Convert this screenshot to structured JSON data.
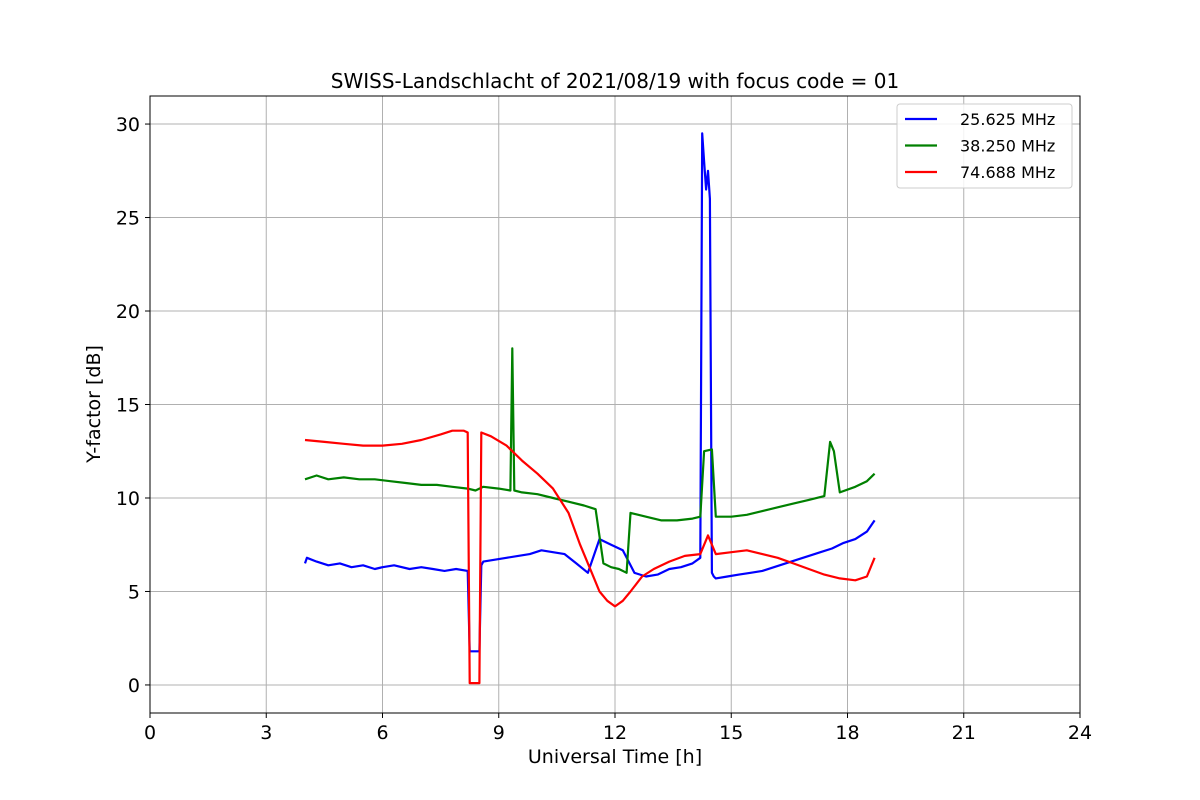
{
  "chart_data": {
    "type": "line",
    "title": "SWISS-Landschlacht of 2021/08/19 with focus code = 01",
    "xlabel": "Universal Time [h]",
    "ylabel": "Y-factor [dB]",
    "xlim": [
      0,
      24
    ],
    "ylim": [
      -1.5,
      31.5
    ],
    "xticks": [
      0,
      3,
      6,
      9,
      12,
      15,
      18,
      21,
      24
    ],
    "yticks": [
      0,
      5,
      10,
      15,
      20,
      25,
      30
    ],
    "grid": true,
    "legend_position": "top-right",
    "series": [
      {
        "name": "25.625 MHz",
        "color": "#0000ff",
        "x": [
          4.0,
          4.05,
          4.3,
          4.6,
          4.9,
          5.2,
          5.5,
          5.8,
          6.0,
          6.3,
          6.7,
          7.0,
          7.3,
          7.6,
          7.9,
          8.2,
          8.25,
          8.3,
          8.5,
          8.55,
          8.6,
          8.9,
          9.2,
          9.5,
          9.8,
          10.1,
          10.4,
          10.7,
          11.0,
          11.3,
          11.6,
          11.9,
          12.2,
          12.5,
          12.8,
          13.1,
          13.4,
          13.7,
          14.0,
          14.2,
          14.25,
          14.3,
          14.35,
          14.4,
          14.45,
          14.5,
          14.55,
          14.6,
          14.9,
          15.2,
          15.5,
          15.8,
          16.1,
          16.4,
          16.7,
          17.0,
          17.3,
          17.6,
          17.9,
          18.2,
          18.5,
          18.7
        ],
        "y": [
          6.5,
          6.8,
          6.6,
          6.4,
          6.5,
          6.3,
          6.4,
          6.2,
          6.3,
          6.4,
          6.2,
          6.3,
          6.2,
          6.1,
          6.2,
          6.1,
          1.8,
          1.8,
          1.8,
          6.4,
          6.6,
          6.7,
          6.8,
          6.9,
          7.0,
          7.2,
          7.1,
          7.0,
          6.5,
          6.0,
          7.8,
          7.5,
          7.2,
          6.0,
          5.8,
          5.9,
          6.2,
          6.3,
          6.5,
          6.8,
          29.5,
          28.0,
          26.5,
          27.5,
          26.0,
          6.0,
          5.8,
          5.7,
          5.8,
          5.9,
          6.0,
          6.1,
          6.3,
          6.5,
          6.7,
          6.9,
          7.1,
          7.3,
          7.6,
          7.8,
          8.2,
          8.8
        ]
      },
      {
        "name": "38.250 MHz",
        "color": "#008000",
        "x": [
          4.0,
          4.3,
          4.6,
          5.0,
          5.4,
          5.8,
          6.2,
          6.6,
          7.0,
          7.4,
          7.8,
          8.2,
          8.4,
          8.6,
          9.0,
          9.3,
          9.35,
          9.4,
          9.6,
          10.0,
          10.4,
          10.8,
          11.2,
          11.5,
          11.7,
          11.9,
          12.1,
          12.3,
          12.4,
          12.8,
          13.2,
          13.6,
          14.0,
          14.2,
          14.3,
          14.5,
          14.6,
          15.0,
          15.4,
          15.8,
          16.2,
          16.6,
          17.0,
          17.4,
          17.55,
          17.65,
          17.8,
          18.2,
          18.5,
          18.7
        ],
        "y": [
          11.0,
          11.2,
          11.0,
          11.1,
          11.0,
          11.0,
          10.9,
          10.8,
          10.7,
          10.7,
          10.6,
          10.5,
          10.4,
          10.6,
          10.5,
          10.4,
          18.0,
          10.4,
          10.3,
          10.2,
          10.0,
          9.8,
          9.6,
          9.4,
          6.5,
          6.3,
          6.2,
          6.0,
          9.2,
          9.0,
          8.8,
          8.8,
          8.9,
          9.0,
          12.5,
          12.6,
          9.0,
          9.0,
          9.1,
          9.3,
          9.5,
          9.7,
          9.9,
          10.1,
          13.0,
          12.5,
          10.3,
          10.6,
          10.9,
          11.3
        ]
      },
      {
        "name": "74.688 MHz",
        "color": "#ff0000",
        "x": [
          4.0,
          4.5,
          5.0,
          5.5,
          6.0,
          6.5,
          7.0,
          7.5,
          7.8,
          8.1,
          8.2,
          8.25,
          8.3,
          8.45,
          8.5,
          8.55,
          8.8,
          9.2,
          9.6,
          10.0,
          10.4,
          10.8,
          11.1,
          11.4,
          11.6,
          11.8,
          12.0,
          12.2,
          12.4,
          12.7,
          13.0,
          13.4,
          13.8,
          14.2,
          14.4,
          14.6,
          15.0,
          15.4,
          15.8,
          16.2,
          16.6,
          17.0,
          17.4,
          17.8,
          18.2,
          18.5,
          18.7
        ],
        "y": [
          13.1,
          13.0,
          12.9,
          12.8,
          12.8,
          12.9,
          13.1,
          13.4,
          13.6,
          13.6,
          13.5,
          0.1,
          0.1,
          0.1,
          0.1,
          13.5,
          13.3,
          12.8,
          12.0,
          11.3,
          10.5,
          9.2,
          7.5,
          6.0,
          5.0,
          4.5,
          4.2,
          4.5,
          5.0,
          5.8,
          6.2,
          6.6,
          6.9,
          7.0,
          8.0,
          7.0,
          7.1,
          7.2,
          7.0,
          6.8,
          6.5,
          6.2,
          5.9,
          5.7,
          5.6,
          5.8,
          6.8
        ]
      }
    ]
  }
}
